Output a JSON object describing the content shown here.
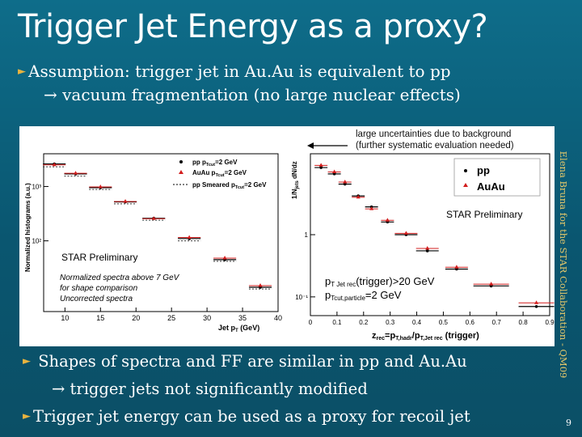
{
  "slide": {
    "title": "Trigger Jet Energy as a proxy?",
    "bullet1_line1": "Assumption: trigger jet in Au.Au is equivalent to pp",
    "bullet1_line2": "→ vacuum fragmentation (no large nuclear effects)",
    "side_text": "Elena Bruna for the STAR Collaboration - QM09",
    "bullet2_line1": "Shapes of spectra and FF are similar in pp and Au.Au",
    "bullet2_line2": "→ trigger jets not significantly modified",
    "bullet3": "Trigger jet energy can be used as a proxy for recoil jet",
    "page_number": "9",
    "accent_color": "#e7b33f",
    "bullet_icon": "triangle-bullet-icon"
  },
  "figure": {
    "note_line1": "large uncertainties due to background",
    "note_line2": "(further systematic evaluation needed)",
    "left": {
      "ylabel": "Normalized histograms (a.u.)",
      "xlabel": "Jet p",
      "xlabel_sub": "T",
      "xlabel_unit": " (GeV)",
      "xticks": [
        "10",
        "15",
        "20",
        "25",
        "30",
        "35",
        "40"
      ],
      "yticks": [
        "10³",
        "10²"
      ],
      "legend": [
        "pp p",
        "AuAu p",
        "pp Smeared p"
      ],
      "legend_suffix": "=2 GeV",
      "legend_sub": "Tcut",
      "preliminary": "STAR Preliminary",
      "note1": "Normalized spectra above 7 GeV",
      "note2": "for shape comparison",
      "note3": "Uncorrected spectra"
    },
    "right": {
      "ylabel": "1/N",
      "xlabel": "z",
      "xlabel_mid": "=p",
      "xlabel_mid2": "/p",
      "xlabel_rest": " (trigger)",
      "xticks": [
        "0",
        "0.1",
        "0.2",
        "0.3",
        "0.4",
        "0.5",
        "0.6",
        "0.7",
        "0.8",
        "0.9"
      ],
      "yticks": [
        "1",
        "10⁻¹"
      ],
      "legend": [
        "pp",
        "AuAu"
      ],
      "preliminary": "STAR Preliminary",
      "cut1": "p",
      "cut1_sub": "T Jet rec",
      "cut1_rest": "(trigger)>20 GeV",
      "cut2": "p",
      "cut2_sub": "Tcut,particle",
      "cut2_rest": "=2 GeV"
    }
  },
  "chart_data": [
    {
      "type": "scatter",
      "title": "",
      "xlabel": "Jet pT (GeV)",
      "ylabel": "Normalized histograms (a.u.)",
      "xlim": [
        7,
        40
      ],
      "ylog": true,
      "legend_position": "top-right",
      "series": [
        {
          "name": "pp pTcut=2 GeV",
          "color": "#000000",
          "x": [
            8.5,
            11.5,
            15,
            18.5,
            22.5,
            27.5,
            32.5,
            37.5
          ],
          "values": [
            2600,
            1700,
            950,
            520,
            260,
            110,
            45,
            14
          ]
        },
        {
          "name": "AuAu pTcut=2 GeV",
          "color": "#d21d1d",
          "x": [
            8.5,
            11.5,
            15,
            18.5,
            22.5,
            27.5,
            32.5,
            37.5
          ],
          "values": [
            2500,
            1750,
            980,
            530,
            255,
            115,
            48,
            15
          ]
        },
        {
          "name": "pp Smeared pTcut=2 GeV",
          "color": "#555555",
          "x": [
            8.5,
            11.5,
            15,
            18.5,
            22.5,
            27.5,
            32.5,
            37.5
          ],
          "values": [
            2300,
            1550,
            880,
            480,
            240,
            100,
            42,
            13
          ]
        }
      ]
    },
    {
      "type": "scatter",
      "title": "",
      "xlabel": "zrec=pT,hadr/pT,Jet rec (trigger)",
      "ylabel": "1/N dN/dz",
      "xlim": [
        0,
        0.9
      ],
      "ylog": true,
      "legend_position": "top-right",
      "series": [
        {
          "name": "pp",
          "color": "#000000",
          "x": [
            0.04,
            0.09,
            0.13,
            0.18,
            0.23,
            0.29,
            0.36,
            0.44,
            0.55,
            0.68,
            0.85
          ],
          "values": [
            12.0,
            9.5,
            6.5,
            4.2,
            2.8,
            1.6,
            1.0,
            0.55,
            0.28,
            0.15,
            0.07
          ]
        },
        {
          "name": "AuAu",
          "color": "#d21d1d",
          "x": [
            0.04,
            0.09,
            0.13,
            0.18,
            0.23,
            0.29,
            0.36,
            0.44,
            0.55,
            0.68,
            0.85
          ],
          "values": [
            13.0,
            10.2,
            7.0,
            4.0,
            2.6,
            1.7,
            1.05,
            0.6,
            0.3,
            0.16,
            0.08
          ]
        }
      ]
    }
  ]
}
